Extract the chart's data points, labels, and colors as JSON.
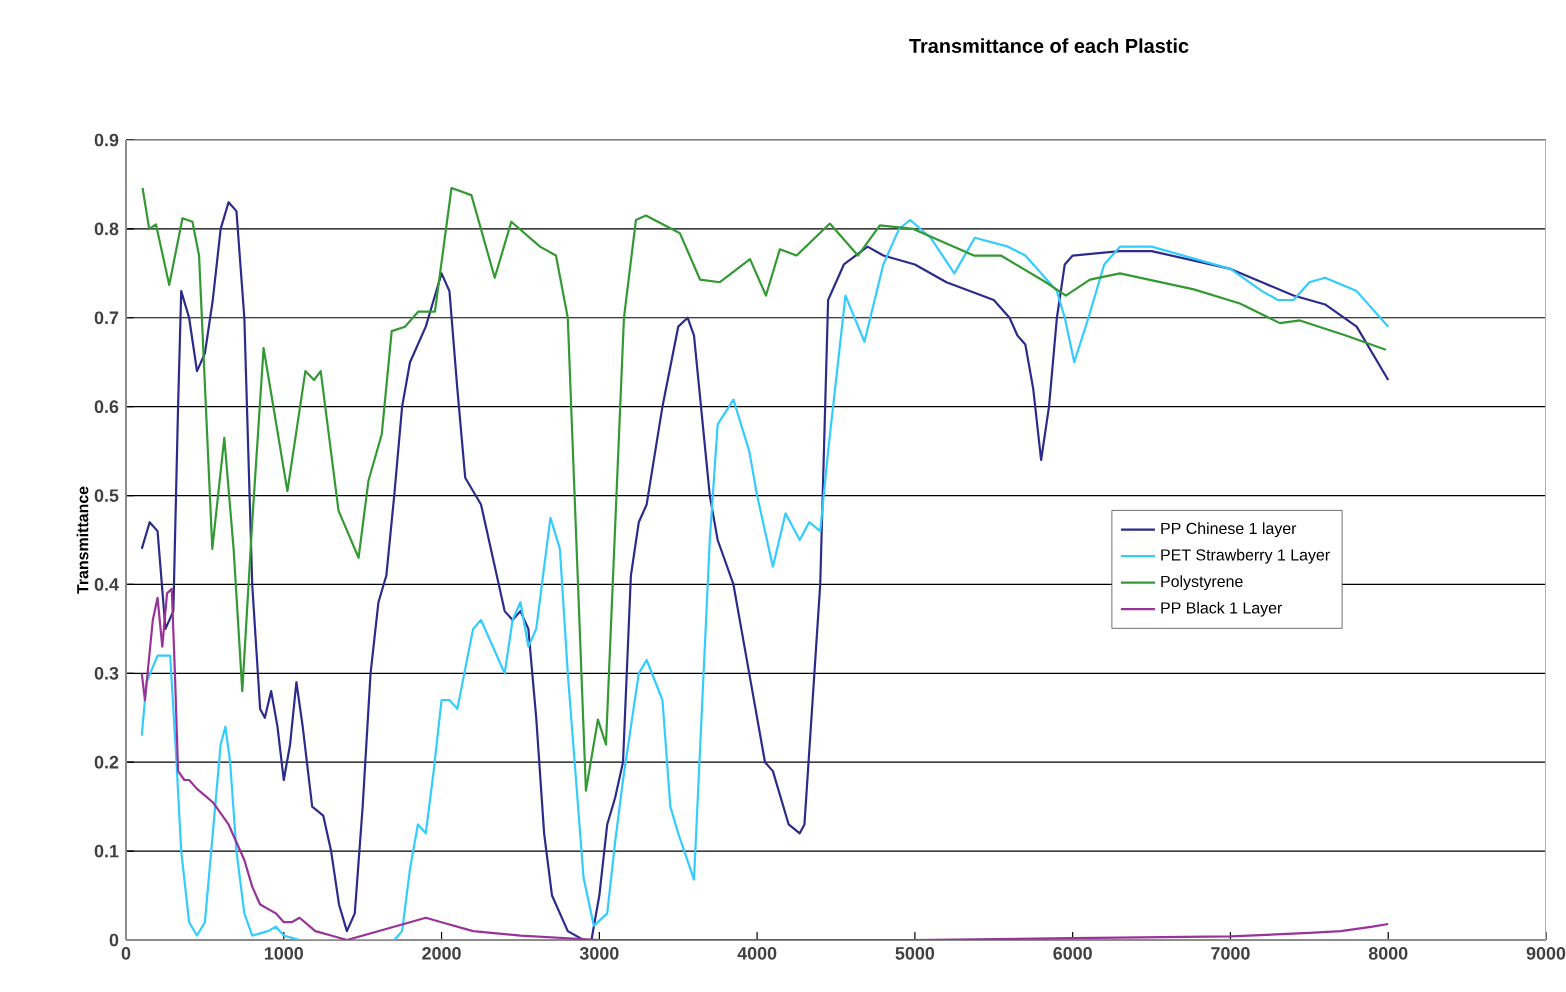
{
  "chart_data": {
    "type": "line",
    "title": "Transmittance of each Plastic",
    "ylabel": "Transmittance",
    "xlim": [
      0,
      9000
    ],
    "xticks": [
      0,
      1000,
      2000,
      3000,
      4000,
      5000,
      6000,
      7000,
      8000,
      9000
    ],
    "ylim": [
      0,
      0.9
    ],
    "yticks": [
      0,
      0.1,
      0.2,
      0.3,
      0.4,
      0.5,
      0.6,
      0.7,
      0.8,
      0.9
    ],
    "grid": "y",
    "legend": "right",
    "marker": "none",
    "line_style": "solid",
    "series": [
      {
        "name": "PP Chinese 1 layer",
        "color": "#2b2b8c",
        "x": [
          100,
          150,
          200,
          250,
          300,
          330,
          350,
          400,
          450,
          500,
          550,
          600,
          650,
          700,
          750,
          800,
          850,
          880,
          920,
          960,
          1000,
          1040,
          1080,
          1120,
          1180,
          1250,
          1300,
          1350,
          1400,
          1450,
          1500,
          1550,
          1600,
          1650,
          1700,
          1750,
          1800,
          1900,
          1950,
          2000,
          2050,
          2100,
          2150,
          2250,
          2300,
          2400,
          2450,
          2500,
          2550,
          2600,
          2650,
          2700,
          2800,
          2900,
          2950,
          3000,
          3050,
          3100,
          3150,
          3200,
          3250,
          3300,
          3400,
          3500,
          3560,
          3600,
          3700,
          3750,
          3850,
          3950,
          4050,
          4100,
          4200,
          4270,
          4300,
          4400,
          4450,
          4550,
          4700,
          4800,
          5000,
          5200,
          5500,
          5600,
          5650,
          5700,
          5750,
          5800,
          5850,
          5900,
          5950,
          6000,
          6300,
          6500,
          7000,
          7200,
          7400,
          7600,
          7800,
          8000
        ],
        "values": [
          0.44,
          0.47,
          0.46,
          0.35,
          0.37,
          0.6,
          0.73,
          0.7,
          0.64,
          0.66,
          0.72,
          0.8,
          0.83,
          0.82,
          0.7,
          0.4,
          0.26,
          0.25,
          0.28,
          0.24,
          0.18,
          0.22,
          0.29,
          0.24,
          0.15,
          0.14,
          0.1,
          0.04,
          0.01,
          0.03,
          0.15,
          0.3,
          0.38,
          0.41,
          0.5,
          0.6,
          0.65,
          0.69,
          0.72,
          0.75,
          0.73,
          0.62,
          0.52,
          0.49,
          0.45,
          0.37,
          0.36,
          0.37,
          0.35,
          0.25,
          0.12,
          0.05,
          0.01,
          0.0,
          0.0,
          0.05,
          0.13,
          0.16,
          0.2,
          0.41,
          0.47,
          0.49,
          0.6,
          0.69,
          0.7,
          0.68,
          0.5,
          0.45,
          0.4,
          0.3,
          0.2,
          0.19,
          0.13,
          0.12,
          0.13,
          0.4,
          0.72,
          0.76,
          0.78,
          0.77,
          0.76,
          0.74,
          0.72,
          0.7,
          0.68,
          0.67,
          0.62,
          0.54,
          0.6,
          0.7,
          0.76,
          0.77,
          0.775,
          0.775,
          0.755,
          0.74,
          0.725,
          0.715,
          0.69,
          0.63
        ]
      },
      {
        "name": "PET Strawberry 1 Layer",
        "color": "#33ccff",
        "x": [
          100,
          130,
          200,
          280,
          320,
          350,
          400,
          450,
          500,
          550,
          600,
          630,
          660,
          700,
          750,
          800,
          900,
          950,
          1000,
          1100,
          1700,
          1750,
          1800,
          1850,
          1900,
          1950,
          2000,
          2050,
          2100,
          2200,
          2250,
          2350,
          2400,
          2450,
          2500,
          2550,
          2600,
          2690,
          2750,
          2800,
          2900,
          2965,
          3050,
          3100,
          3150,
          3250,
          3300,
          3400,
          3450,
          3500,
          3600,
          3700,
          3750,
          3850,
          3950,
          4000,
          4100,
          4180,
          4270,
          4330,
          4400,
          4450,
          4560,
          4680,
          4800,
          4900,
          4970,
          5100,
          5250,
          5380,
          5590,
          5700,
          5800,
          5900,
          5950,
          6010,
          6100,
          6200,
          6300,
          6500,
          7000,
          7200,
          7300,
          7400,
          7500,
          7600,
          7800,
          8000
        ],
        "values": [
          0.23,
          0.29,
          0.32,
          0.32,
          0.2,
          0.1,
          0.02,
          0.005,
          0.02,
          0.12,
          0.22,
          0.24,
          0.2,
          0.1,
          0.03,
          0.005,
          0.01,
          0.015,
          0.005,
          0.0,
          0.0,
          0.01,
          0.08,
          0.13,
          0.12,
          0.19,
          0.27,
          0.27,
          0.26,
          0.35,
          0.36,
          0.32,
          0.3,
          0.36,
          0.38,
          0.33,
          0.35,
          0.475,
          0.44,
          0.3,
          0.07,
          0.016,
          0.03,
          0.11,
          0.18,
          0.3,
          0.315,
          0.27,
          0.15,
          0.12,
          0.068,
          0.45,
          0.58,
          0.608,
          0.55,
          0.5,
          0.42,
          0.48,
          0.45,
          0.47,
          0.46,
          0.55,
          0.725,
          0.673,
          0.76,
          0.8,
          0.81,
          0.79,
          0.75,
          0.79,
          0.78,
          0.77,
          0.75,
          0.73,
          0.7,
          0.65,
          0.7,
          0.76,
          0.78,
          0.78,
          0.755,
          0.73,
          0.72,
          0.72,
          0.74,
          0.745,
          0.73,
          0.69
        ]
      },
      {
        "name": "Polystyrene",
        "color": "#339933",
        "x": [
          105,
          147,
          190,
          274,
          358,
          421,
          463,
          547,
          623,
          682,
          737,
          800,
          872,
          1023,
          1137,
          1192,
          1234,
          1347,
          1474,
          1537,
          1621,
          1684,
          1768,
          1853,
          1958,
          2063,
          2189,
          2337,
          2442,
          2624,
          2725,
          2800,
          2915,
          2991,
          3042,
          3156,
          3232,
          3295,
          3511,
          3638,
          3764,
          3955,
          4056,
          4144,
          4250,
          4461,
          4639,
          4778,
          4990,
          5374,
          5545,
          5830,
          5957,
          6109,
          6299,
          6768,
          7060,
          7313,
          7440,
          7731,
          7985
        ],
        "values": [
          0.846,
          0.8,
          0.805,
          0.737,
          0.812,
          0.808,
          0.77,
          0.44,
          0.565,
          0.44,
          0.28,
          0.47,
          0.666,
          0.505,
          0.64,
          0.63,
          0.64,
          0.483,
          0.43,
          0.517,
          0.569,
          0.685,
          0.69,
          0.707,
          0.707,
          0.846,
          0.838,
          0.745,
          0.808,
          0.78,
          0.77,
          0.7,
          0.168,
          0.248,
          0.22,
          0.7,
          0.81,
          0.815,
          0.795,
          0.743,
          0.74,
          0.766,
          0.725,
          0.777,
          0.77,
          0.806,
          0.77,
          0.804,
          0.8,
          0.77,
          0.77,
          0.74,
          0.725,
          0.743,
          0.75,
          0.732,
          0.716,
          0.694,
          0.697,
          0.68,
          0.664
        ]
      },
      {
        "name": "PP Black 1 Layer",
        "color": "#993399",
        "x": [
          100,
          120,
          170,
          200,
          230,
          260,
          290,
          310,
          330,
          370,
          400,
          450,
          550,
          650,
          700,
          750,
          800,
          850,
          900,
          950,
          1000,
          1050,
          1100,
          1200,
          1300,
          1400,
          1600,
          1800,
          1900,
          2000,
          2200,
          2500,
          3000,
          4000,
          5000,
          6000,
          7000,
          7500,
          7700,
          7900,
          8000
        ],
        "values": [
          0.3,
          0.27,
          0.36,
          0.385,
          0.33,
          0.39,
          0.395,
          0.3,
          0.19,
          0.18,
          0.18,
          0.17,
          0.155,
          0.13,
          0.11,
          0.09,
          0.06,
          0.04,
          0.035,
          0.03,
          0.02,
          0.02,
          0.025,
          0.01,
          0.005,
          0.0,
          0.01,
          0.02,
          0.025,
          0.02,
          0.01,
          0.005,
          0.0,
          0.0,
          0.0,
          0.002,
          0.004,
          0.008,
          0.01,
          0.015,
          0.018
        ]
      }
    ]
  }
}
